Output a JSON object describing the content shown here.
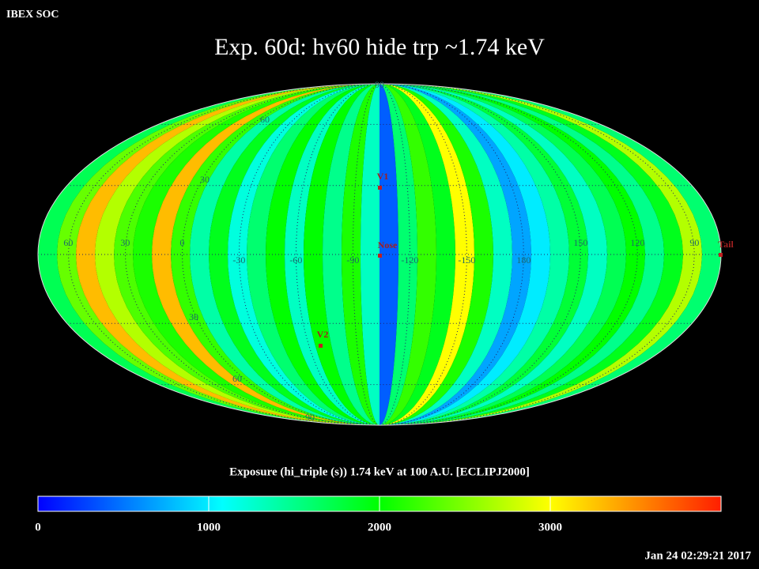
{
  "header": {
    "org": "IBEX SOC",
    "title": "Exp.   60d: hv60 hide trp ~1.74 keV",
    "timestamp": "Jan 24 02:29:21 2017"
  },
  "map": {
    "lon_ticks": [
      60,
      30,
      0,
      -30,
      -60,
      -90,
      -120,
      -150,
      180,
      150,
      120,
      90
    ],
    "lat_labels": [
      "60",
      "30",
      "30",
      "60",
      "90",
      "90"
    ],
    "markers": [
      "V1",
      "Nose",
      "V2",
      "Tail"
    ],
    "strips": [
      1700,
      2400,
      3300,
      2700,
      2300,
      2100,
      3300,
      2200,
      1400,
      1900,
      1200,
      1600,
      2000,
      1300,
      2000,
      1500,
      2100,
      1300,
      400,
      1600,
      2200,
      1900,
      3000,
      2100,
      1300,
      700,
      1000,
      1400,
      1800,
      1300,
      1700,
      2000,
      1500,
      1900,
      2700,
      1600
    ]
  },
  "colorbar": {
    "label": "Exposure (hi_triple (s))  1.74 keV at 100 A.U. [ECLIPJ2000]",
    "range": [
      0,
      4000
    ],
    "ticks": [
      0,
      1000,
      2000,
      3000
    ]
  }
}
